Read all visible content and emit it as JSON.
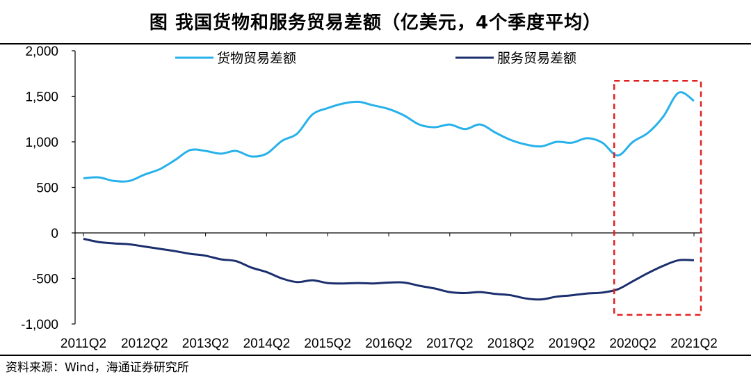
{
  "title": "图  我国货物和服务贸易差额（亿美元，4个季度平均）",
  "source": "资料来源：Wind，海通证券研究所",
  "colors": {
    "goods": "#27b1ea",
    "services": "#1b2f6e",
    "highlight": "#e02020"
  },
  "chart_data": {
    "type": "line",
    "title": "图  我国货物和服务贸易差额（亿美元，4个季度平均）",
    "xlabel": "",
    "ylabel": "",
    "ylim": [
      -1000,
      2000
    ],
    "yticks": [
      -1000,
      -500,
      0,
      500,
      1000,
      1500,
      2000
    ],
    "ytick_labels": [
      "-1,000",
      "-500",
      "0",
      "500",
      "1,000",
      "1,500",
      "2,000"
    ],
    "xlim": [
      "2011Q2",
      "2021Q2"
    ],
    "xtick_labels": [
      "2011Q2",
      "2012Q2",
      "2013Q2",
      "2014Q2",
      "2015Q2",
      "2016Q2",
      "2017Q2",
      "2018Q2",
      "2019Q2",
      "2020Q2",
      "2021Q2"
    ],
    "legend_position": "top",
    "grid": false,
    "x": [
      "2011Q2",
      "2011Q3",
      "2011Q4",
      "2012Q1",
      "2012Q2",
      "2012Q3",
      "2012Q4",
      "2013Q1",
      "2013Q2",
      "2013Q3",
      "2013Q4",
      "2014Q1",
      "2014Q2",
      "2014Q3",
      "2014Q4",
      "2015Q1",
      "2015Q2",
      "2015Q3",
      "2015Q4",
      "2016Q1",
      "2016Q2",
      "2016Q3",
      "2016Q4",
      "2017Q1",
      "2017Q2",
      "2017Q3",
      "2017Q4",
      "2018Q1",
      "2018Q2",
      "2018Q3",
      "2018Q4",
      "2019Q1",
      "2019Q2",
      "2019Q3",
      "2019Q4",
      "2020Q1",
      "2020Q2",
      "2020Q3",
      "2020Q4",
      "2021Q1",
      "2021Q2"
    ],
    "series": [
      {
        "name": "货物贸易差额",
        "values": [
          600,
          610,
          570,
          570,
          640,
          700,
          800,
          910,
          900,
          870,
          900,
          840,
          870,
          1010,
          1090,
          1300,
          1370,
          1420,
          1440,
          1400,
          1360,
          1290,
          1190,
          1160,
          1190,
          1140,
          1190,
          1100,
          1020,
          970,
          950,
          1000,
          990,
          1040,
          990,
          850,
          1000,
          1100,
          1280,
          1540,
          1450
        ]
      },
      {
        "name": "服务贸易差额",
        "values": [
          -65,
          -100,
          -115,
          -125,
          -150,
          -175,
          -200,
          -230,
          -250,
          -290,
          -310,
          -380,
          -430,
          -500,
          -540,
          -520,
          -550,
          -555,
          -550,
          -555,
          -545,
          -545,
          -580,
          -610,
          -650,
          -660,
          -650,
          -670,
          -685,
          -720,
          -730,
          -700,
          -685,
          -665,
          -655,
          -620,
          -530,
          -440,
          -360,
          -300,
          -300
        ]
      }
    ],
    "annotations": [
      {
        "type": "dashed-box",
        "x_from": "2020Q1",
        "x_to": "2021Q2",
        "y_from": -900,
        "y_to": 1670
      }
    ]
  }
}
